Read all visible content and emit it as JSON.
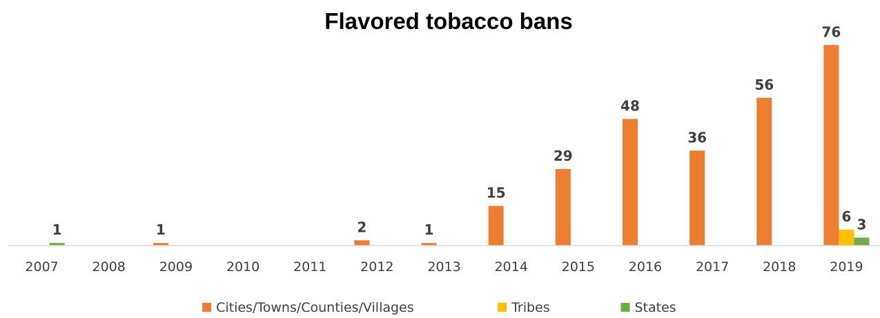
{
  "chart_data": {
    "type": "bar",
    "title": "Flavored tobacco bans",
    "xlabel": "",
    "ylabel": "",
    "categories": [
      "2007",
      "2008",
      "2009",
      "2010",
      "2011",
      "2012",
      "2013",
      "2014",
      "2015",
      "2016",
      "2017",
      "2018",
      "2019"
    ],
    "series": [
      {
        "name": "Cities/Towns/Counties/Villages",
        "color": "#ED7D31",
        "values": [
          null,
          null,
          1,
          null,
          null,
          2,
          1,
          15,
          29,
          48,
          36,
          56,
          76
        ]
      },
      {
        "name": "Tribes",
        "color": "#FFC000",
        "values": [
          null,
          null,
          null,
          null,
          null,
          null,
          null,
          null,
          null,
          null,
          null,
          null,
          6
        ]
      },
      {
        "name": "States",
        "color": "#70AD47",
        "values": [
          1,
          null,
          null,
          null,
          null,
          null,
          null,
          null,
          null,
          null,
          null,
          null,
          3
        ]
      }
    ],
    "ylim": [
      0,
      80
    ],
    "grid": false,
    "legend_position": "bottom",
    "data_labels": true
  }
}
